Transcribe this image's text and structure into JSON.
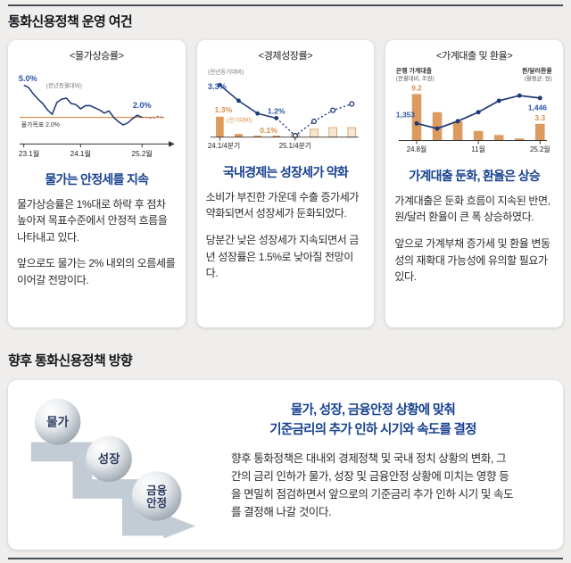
{
  "sections": {
    "conditions_title": "통화신용정책 운영 여건",
    "direction_title": "향후 통화신용정책 방향"
  },
  "cards": [
    {
      "title": "물가는 안정세를 지속",
      "body1": "물가상승률은 1%대로 하락 후 점차 높아져 목표수준에서 안정적 흐름을 나타내고 있다.",
      "body2": "앞으로도 물가는 2% 내외의 오름세를 이어갈 전망이다."
    },
    {
      "title": "국내경제는 성장세가 약화",
      "body1": "소비가 부진한 가운데 수출 증가세가 약화되면서 성장세가 둔화되었다.",
      "body2": "당분간 낮은 성장세가 지속되면서 금년 성장률은 1.5%로 낮아질 전망이다."
    },
    {
      "title": "가계대출 둔화, 환율은 상승",
      "body1": "가계대출은 둔화 흐름이 지속된 반면, 원/달러 환율이 큰 폭 상승하였다.",
      "body2": "앞으로 가계부채 증가세 및 환율 변동성의 재확대 가능성에 유의할 필요가 있다."
    }
  ],
  "direction": {
    "balls": [
      "물가",
      "성장",
      "금융안정"
    ],
    "headline1": "물가, 성장, 금융안정 상황에 맞춰",
    "headline2": "기준금리의 추가 인하 시기와 속도를 결정",
    "body": "향후 통화정책은 대내외 경제정책 및 국내 정치 상황의 변화, 그간의 금리 인하가 물가, 성장 및 금융안정 상황에 미치는 영향 등을 면밀히 점검하면서 앞으로의 기준금리 추가 인하 시기 및 속도를 결정해 나갈 것이다."
  },
  "colors": {
    "accent_blue": "#17418f",
    "line_navy": "#1f3a78",
    "bar_orange": "#dd9a5f",
    "bar_forecast_fill": "#f6e7d4",
    "label_orange": "#d98e4a",
    "label_blue": "#2d55a8",
    "forecast_red": "#a85043",
    "target_orange": "#d89a5a",
    "steps_gray": "#c3ccd5",
    "ball_text": "#2c3a5e"
  },
  "chart_data": [
    {
      "type": "line",
      "title": "<물가상승률>",
      "series_label": "(전년동월대비)",
      "start_label": "5.0%",
      "end_label": "2.0%",
      "target_label": "물가목표 2.0%",
      "target_value": 2.0,
      "x_ticks": [
        "23.1월",
        "24.1월",
        "25.2월"
      ],
      "x_tick_indices": [
        0,
        12,
        25
      ],
      "actual": [
        5.0,
        4.8,
        4.2,
        3.7,
        3.3,
        2.7,
        2.3,
        3.4,
        3.7,
        3.8,
        3.3,
        3.2,
        2.8,
        3.1,
        3.1,
        2.9,
        2.7,
        2.4,
        2.6,
        2.0,
        1.6,
        1.3,
        1.5,
        1.9,
        2.2,
        2.0
      ],
      "forecast": [
        2.0,
        1.9,
        2.1,
        2.0
      ],
      "ylim": [
        0,
        5.6
      ]
    },
    {
      "type": "bar-line",
      "title": "<경제성장률>",
      "line_label": "(전년동기대비)",
      "bar_label": "(전기대비)",
      "categories": [
        "24.1/4",
        "24.2/4",
        "24.3/4",
        "24.4/4",
        "25.1/4",
        "25.2/4",
        "25.3/4",
        "25.4/4"
      ],
      "x_ticks": [
        {
          "index": 0,
          "label": "24.1/4분기"
        },
        {
          "index": 4,
          "label": "25.1/4분기"
        }
      ],
      "line_actual": [
        3.3,
        2.3,
        1.5,
        1.2
      ],
      "line_forecast": [
        0.1,
        1.0,
        1.7,
        2.1
      ],
      "bars_actual": [
        1.3,
        0.2,
        0.1,
        0.1
      ],
      "bars_forecast": [
        0.2,
        0.5,
        0.6,
        0.6
      ],
      "labels": {
        "line_start": "3.3%",
        "bar_start": "1.3%",
        "line_q4": "1.2%",
        "bar_q4": "0.1%"
      },
      "annual_forecast": "1.5%",
      "ylim": [
        0,
        3.8
      ]
    },
    {
      "type": "bar-line-dual",
      "title": "<가계대출 및 환율>",
      "bar_axis_title": "은행 가계대출",
      "bar_axis_unit": "(전월대비, 조원)",
      "line_axis_title": "원/달러환율",
      "line_axis_unit": "(월평균, 원)",
      "categories": [
        "24.8",
        "24.9",
        "24.10",
        "24.11",
        "24.12",
        "25.1",
        "25.2"
      ],
      "x_ticks": [
        {
          "index": 0,
          "label": "24.8월"
        },
        {
          "index": 3,
          "label": "11월"
        },
        {
          "index": 6,
          "label": "25.2월"
        }
      ],
      "bars": [
        9.2,
        5.6,
        3.8,
        1.9,
        1.1,
        0.4,
        3.3
      ],
      "line": [
        1353,
        1334,
        1361,
        1394,
        1436,
        1455,
        1446
      ],
      "labels": {
        "bar_first": "9.2",
        "bar_last": "3.3",
        "line_first": "1,353",
        "line_last": "1,446"
      },
      "bar_ylim": [
        0,
        10.5
      ],
      "line_ylim": [
        1290,
        1485
      ]
    }
  ]
}
